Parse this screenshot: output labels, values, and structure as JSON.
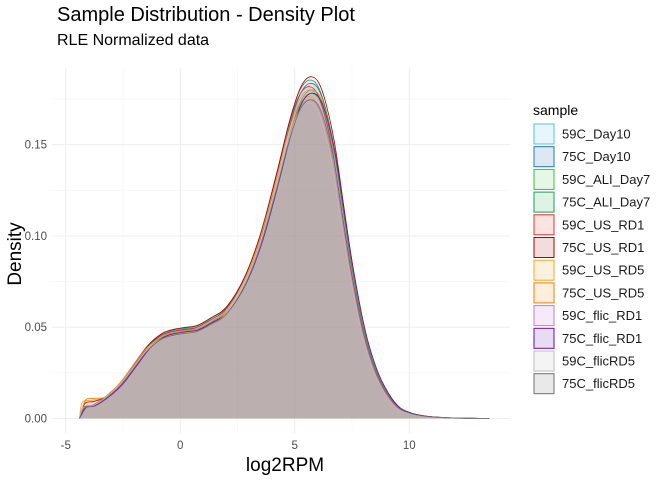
{
  "chart_data": {
    "type": "area",
    "title": "Sample Distribution - Density Plot",
    "subtitle": "RLE Normalized data",
    "xlabel": "log2RPM",
    "ylabel": "Density",
    "xlim": [
      -5.6,
      14.4
    ],
    "ylim": [
      -0.008,
      0.192
    ],
    "x_ticks": [
      -5,
      0,
      5,
      10
    ],
    "x_tick_labels": [
      "-5",
      "0",
      "5",
      "10"
    ],
    "y_ticks": [
      0.0,
      0.05,
      0.1,
      0.15
    ],
    "y_tick_labels": [
      "0.00",
      "0.05",
      "0.10",
      "0.15"
    ],
    "grid": true,
    "legend": {
      "title": "sample",
      "position": "right"
    },
    "curve": {
      "x": [
        -4.4,
        -4.2,
        -3.8,
        -3.2,
        -2.6,
        -2.0,
        -1.4,
        -0.8,
        -0.3,
        0.2,
        0.7,
        1.3,
        2.0,
        2.8,
        3.5,
        4.2,
        4.7,
        5.1,
        5.4,
        5.7,
        6.0,
        6.3,
        6.7,
        7.1,
        7.5,
        8.0,
        8.5,
        9.0,
        9.5,
        10.0,
        10.5,
        11.0,
        11.5,
        12.0,
        12.5,
        13.0,
        13.5
      ],
      "y": [
        0.0,
        0.006,
        0.007,
        0.012,
        0.019,
        0.029,
        0.039,
        0.045,
        0.047,
        0.048,
        0.049,
        0.053,
        0.059,
        0.075,
        0.098,
        0.13,
        0.155,
        0.171,
        0.178,
        0.18,
        0.177,
        0.167,
        0.145,
        0.112,
        0.08,
        0.048,
        0.027,
        0.014,
        0.006,
        0.003,
        0.0015,
        0.0008,
        0.0004,
        0.0002,
        0.0001,
        0.0,
        0.0
      ]
    },
    "series": [
      {
        "name": "59C_Day10",
        "color": "#4fc3e0",
        "fill": "#e8f6fb",
        "scale": 1.0,
        "dx": -0.02,
        "left_bump": 0.0
      },
      {
        "name": "75C_Day10",
        "color": "#1f78b4",
        "fill": "#dde8f2",
        "scale": 1.02,
        "dx": 0.03,
        "left_bump": 0.0
      },
      {
        "name": "59C_ALI_Day7",
        "color": "#33c33a",
        "fill": "#e6f7e6",
        "scale": 0.99,
        "dx": 0.05,
        "left_bump": 0.0
      },
      {
        "name": "75C_ALI_Day7",
        "color": "#1a9e5a",
        "fill": "#def2e6",
        "scale": 1.03,
        "dx": 0.0,
        "left_bump": 0.0
      },
      {
        "name": "59C_US_RD1",
        "color": "#e8302a",
        "fill": "#fbe3e2",
        "scale": 1.01,
        "dx": -0.05,
        "left_bump": 0.0
      },
      {
        "name": "75C_US_RD1",
        "color": "#b30000",
        "fill": "#f2dddd",
        "scale": 1.04,
        "dx": 0.04,
        "left_bump": 0.002
      },
      {
        "name": "59C_US_RD5",
        "color": "#f5a623",
        "fill": "#fdf1dd",
        "scale": 0.98,
        "dx": -0.08,
        "left_bump": 0.003
      },
      {
        "name": "75C_US_RD5",
        "color": "#ee7d00",
        "fill": "#fdeedd",
        "scale": 1.0,
        "dx": 0.07,
        "left_bump": 0.004
      },
      {
        "name": "59C_flic_RD1",
        "color": "#c77bd9",
        "fill": "#f6e9fa",
        "scale": 0.97,
        "dx": -0.03,
        "left_bump": 0.0
      },
      {
        "name": "75C_flic_RD1",
        "color": "#6a0dad",
        "fill": "#e8dcf2",
        "scale": 0.99,
        "dx": 0.09,
        "left_bump": 0.0
      },
      {
        "name": "59C_flicRD5",
        "color": "#bdbdbd",
        "fill": "#f4f4f4",
        "scale": 0.96,
        "dx": -0.06,
        "left_bump": 0.0
      },
      {
        "name": "75C_flicRD5",
        "color": "#707070",
        "fill": "#e9e9e9",
        "scale": 0.97,
        "dx": 0.02,
        "left_bump": 0.0
      }
    ],
    "fill_color": "#b0999c"
  }
}
